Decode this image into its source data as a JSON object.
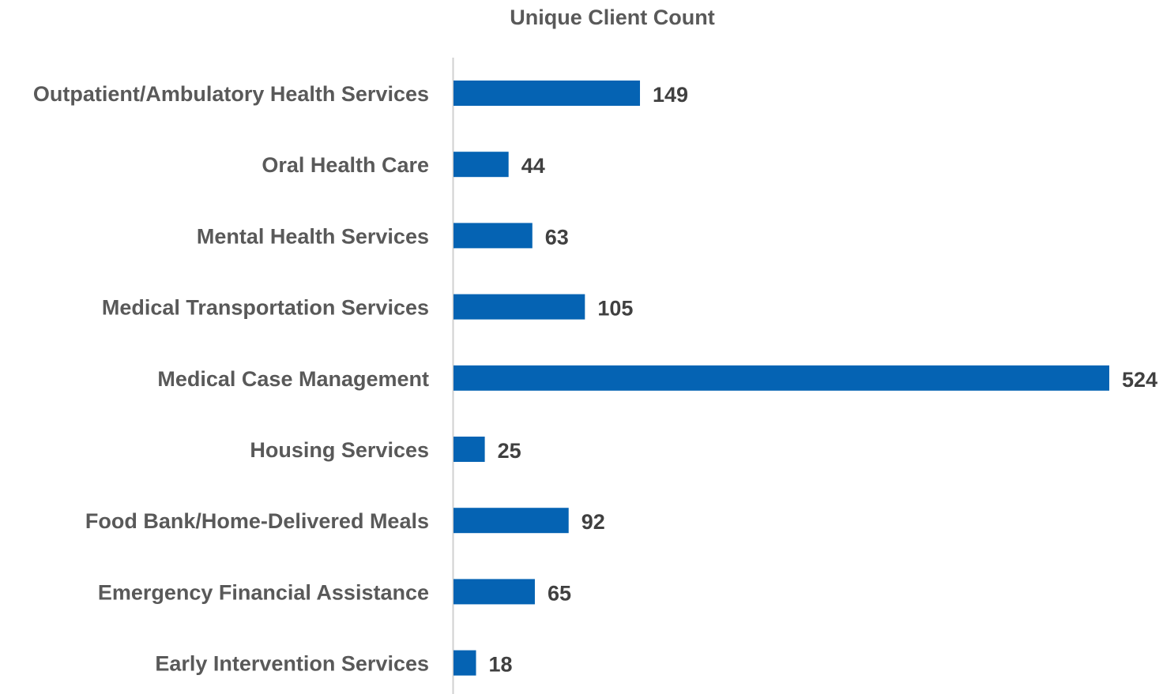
{
  "chart_data": {
    "type": "bar",
    "orientation": "horizontal",
    "title": "Unique Client Count",
    "xlabel": "",
    "ylabel": "",
    "categories": [
      "Outpatient/Ambulatory Health Services",
      "Oral Health Care",
      "Mental Health Services",
      "Medical Transportation Services",
      "Medical Case Management",
      "Housing Services",
      "Food Bank/Home-Delivered Meals",
      "Emergency Financial Assistance",
      "Early Intervention Services"
    ],
    "values": [
      149,
      44,
      63,
      105,
      524,
      25,
      92,
      65,
      18
    ],
    "xlim": [
      0,
      524
    ],
    "grid": false,
    "legend": "none",
    "data_labels": true,
    "bar_color": "#0563B3",
    "axis_color": "#D0D0D0"
  }
}
